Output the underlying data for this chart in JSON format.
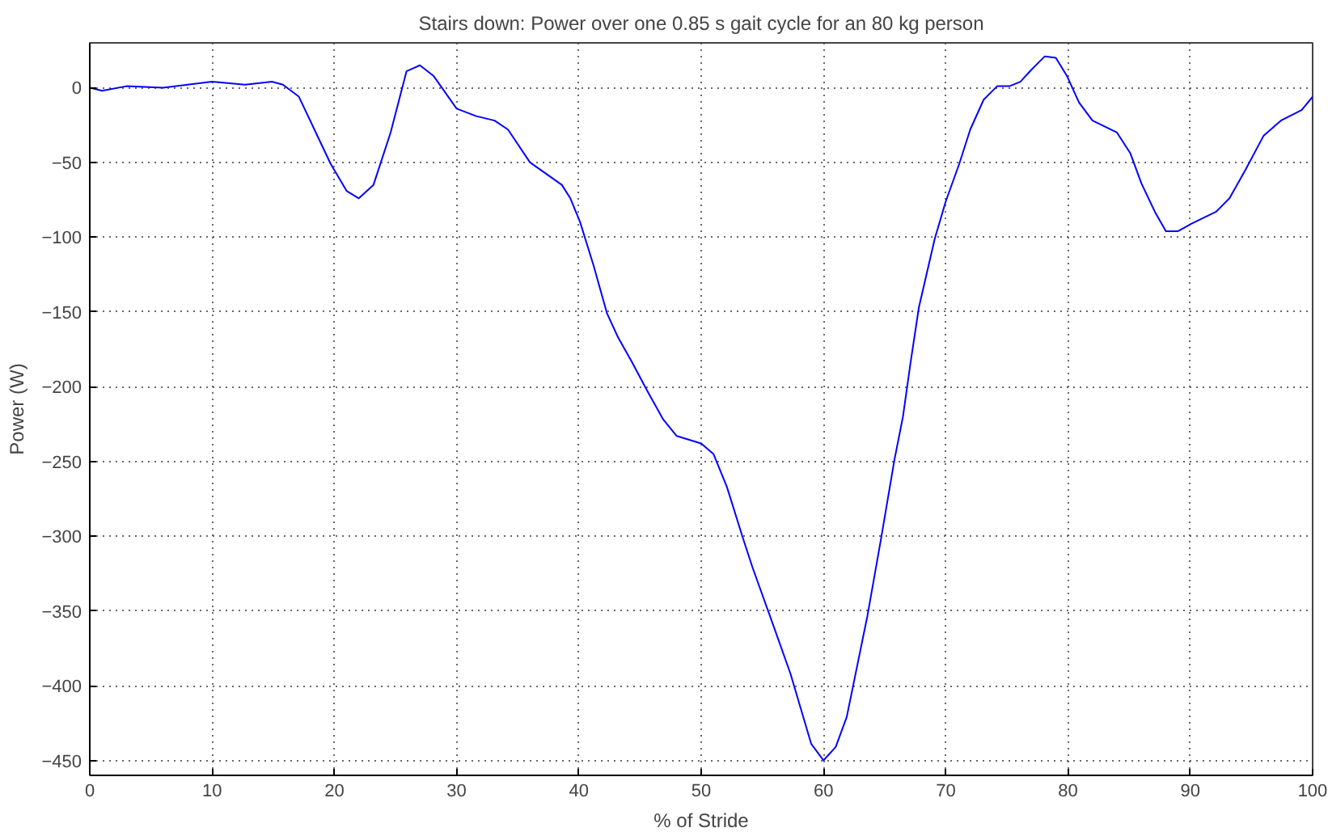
{
  "chart_data": {
    "type": "line",
    "title": "Stairs down: Power over one 0.85 s gait cycle for an 80 kg person",
    "xlabel": "% of Stride",
    "ylabel": "Power (W)",
    "x": [
      0,
      1,
      3,
      6,
      10,
      12.7,
      14.9,
      15.8,
      17.1,
      19.7,
      21,
      22,
      23.2,
      24.6,
      25.9,
      27,
      28.1,
      30,
      31.6,
      33.1,
      34.2,
      36,
      38.6,
      39.3,
      40.1,
      41.2,
      42.3,
      43.2,
      44.3,
      45.6,
      46.9,
      48,
      50,
      51,
      52.1,
      53.4,
      54.2,
      56,
      57.3,
      59,
      60,
      61,
      61.9,
      63.6,
      64.7,
      65.8,
      66.5,
      67.1,
      67.8,
      69.1,
      70,
      71.1,
      72,
      73.1,
      74.2,
      75.2,
      76.1,
      77,
      78.1,
      79,
      79.9,
      80.9,
      82,
      84,
      85.1,
      86,
      87.1,
      88,
      89,
      90.1,
      92.1,
      93.2,
      94.5,
      96,
      97.4,
      99.1,
      100
    ],
    "series": [
      {
        "color": "#0000ff",
        "values": [
          0,
          -2,
          1,
          0,
          4,
          2,
          4,
          2,
          -6,
          -51,
          -69,
          -74,
          -65,
          -30,
          11,
          15,
          8,
          -14,
          -19,
          -22,
          -28,
          -50,
          -65,
          -74,
          -90,
          -119,
          -151,
          -167,
          -183,
          -203,
          -222,
          -233,
          -238,
          -245,
          -267,
          -301,
          -321,
          -362,
          -392,
          -439,
          -450,
          -441,
          -421,
          -353,
          -302,
          -249,
          -220,
          -185,
          -147,
          -101,
          -76,
          -51,
          -28,
          -8,
          1,
          1,
          4,
          12,
          21,
          20,
          8,
          -10,
          -22,
          -30,
          -44,
          -64,
          -83,
          -96,
          -96,
          -91,
          -83,
          -74,
          -55,
          -32,
          -22,
          -15,
          -6
        ]
      }
    ],
    "xlim": [
      0,
      100
    ],
    "xticks": [
      0,
      10,
      20,
      30,
      40,
      50,
      60,
      70,
      80,
      90,
      100
    ],
    "ylim": [
      -460,
      30
    ],
    "yticks": [
      -450,
      -400,
      -350,
      -300,
      -250,
      -200,
      -150,
      -100,
      -50,
      0
    ],
    "grid": true,
    "marker": "none",
    "line_style": "solid"
  }
}
